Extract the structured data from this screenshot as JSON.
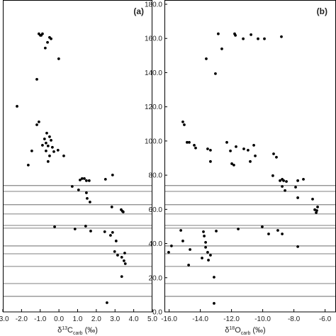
{
  "chart_data": [
    {
      "type": "scatter",
      "panel_label": "(a)",
      "xlabel": {
        "prefix": "δ",
        "sup": "13",
        "element": "C",
        "sub": "carb",
        "unit": "(‰)"
      },
      "color": "#000000",
      "xlim": [
        -3,
        5
      ],
      "xticks": [
        {
          "value": -3,
          "label": "-3.0"
        },
        {
          "value": -2,
          "label": "-2.0"
        },
        {
          "value": -1,
          "label": "-1.0"
        },
        {
          "value": 0,
          "label": "0.0"
        },
        {
          "value": 1,
          "label": "1.0"
        },
        {
          "value": 2,
          "label": "2.0"
        },
        {
          "value": 3,
          "label": "3.0"
        },
        {
          "value": 4,
          "label": "4.0"
        },
        {
          "value": 5,
          "label": "5.0"
        }
      ],
      "ylim": [
        0,
        180
      ],
      "hlines": [
        73.9,
        70.5,
        62.7,
        57.3,
        50.6,
        49.0,
        38.6,
        34.0,
        26.6,
        16.6,
        9.1
      ],
      "x": [
        -1.07,
        -0.95,
        -0.88,
        -0.99,
        -0.5,
        -0.42,
        -0.61,
        -0.73,
        -0.01,
        -1.18,
        -2.24,
        -1.07,
        -1.18,
        -0.65,
        -0.5,
        -0.77,
        -0.42,
        -0.69,
        -0.88,
        -0.58,
        -0.35,
        -0.05,
        -0.69,
        -0.27,
        -0.5,
        -0.58,
        0.26,
        -1.45,
        -1.64,
        1.24,
        1.36,
        1.47,
        1.62,
        1.13,
        2.87,
        2.49,
        0.71,
        1.05,
        1.47,
        1.51,
        1.66,
        2.83,
        3.33,
        3.4,
        3.44,
        -0.23,
        0.86,
        1.43,
        1.7,
        2.45,
        2.76,
        2.87,
        3.06,
        2.98,
        3.14,
        3.36,
        3.52,
        3.48,
        3.55,
        3.36,
        2.57
      ],
      "values": [
        162.7,
        161.8,
        162.7,
        161.8,
        160.6,
        159.8,
        157.7,
        154.4,
        148.1,
        136.1,
        120.3,
        111.2,
        109.5,
        104.6,
        102.5,
        101.2,
        100.4,
        98.8,
        97.5,
        97.1,
        96.3,
        94.6,
        94.2,
        93.8,
        91.3,
        88.0,
        91.3,
        94.2,
        85.9,
        78.0,
        78.0,
        76.8,
        76.8,
        77.2,
        80.1,
        77.6,
        73.4,
        71.4,
        69.7,
        66.4,
        64.3,
        61.4,
        59.8,
        58.9,
        58.5,
        49.8,
        48.5,
        50.2,
        47.3,
        46.9,
        44.8,
        46.5,
        41.5,
        35.3,
        33.2,
        32.0,
        34.4,
        29.9,
        28.2,
        20.7,
        5.4
      ]
    },
    {
      "type": "scatter",
      "panel_label": "(b)",
      "xlabel": {
        "prefix": "δ",
        "sup": "18",
        "element": "O",
        "sub": "carb",
        "unit": "(‰)"
      },
      "color": "#000000",
      "xlim": [
        -16.3,
        -5.3
      ],
      "xticks": [
        {
          "value": -16,
          "label": "-16.0"
        },
        {
          "value": -14,
          "label": "-14.0"
        },
        {
          "value": -12,
          "label": "-12.0"
        },
        {
          "value": -10,
          "label": "-10.0"
        },
        {
          "value": -8,
          "label": "-8.0"
        },
        {
          "value": -6,
          "label": "-6.0"
        }
      ],
      "ylim": [
        0,
        180
      ],
      "yticks": [
        {
          "value": 0,
          "label": "0.0"
        },
        {
          "value": 20,
          "label": "20.0"
        },
        {
          "value": 40,
          "label": "40.0"
        },
        {
          "value": 60,
          "label": "60.0"
        },
        {
          "value": 80,
          "label": "80.0"
        },
        {
          "value": 100,
          "label": "100.0"
        },
        {
          "value": 120,
          "label": "120.0"
        },
        {
          "value": 140,
          "label": "140.0"
        },
        {
          "value": 160,
          "label": "160.0"
        },
        {
          "value": 180,
          "label": "180.0"
        }
      ],
      "hlines": [
        73.9,
        70.5,
        62.7,
        57.3,
        50.6,
        49.0,
        38.6,
        34.0,
        26.6,
        16.6,
        9.1
      ],
      "x": [
        -12.85,
        -11.8,
        -11.75,
        -10.75,
        -10.3,
        -8.8,
        -11.25,
        -9.89,
        -12.62,
        -13.62,
        -13.03,
        -15.12,
        -15.03,
        -14.85,
        -14.71,
        -14.39,
        -13.53,
        -13.35,
        -14.3,
        -13.35,
        -12.3,
        -12.07,
        -11.71,
        -11.21,
        -10.94,
        -10.57,
        -10.48,
        -11.98,
        -10.8,
        -9.3,
        -9.12,
        -11.85,
        -9.35,
        -8.89,
        -8.75,
        -8.66,
        -8.48,
        -8.75,
        -7.75,
        -7.89,
        -7.39,
        -8.57,
        -7.75,
        -6.8,
        -6.48,
        -6.66,
        -6.53,
        -6.57,
        -15.25,
        -13.8,
        -12.98,
        -13.75,
        -15.12,
        -13.66,
        -13.66,
        -14.66,
        -13.89,
        -13.48,
        -13.53,
        -13.35,
        -15.85,
        -16.03,
        -14.75,
        -13.12,
        -13.12,
        -11.57,
        -10.03,
        -8.75,
        -9.62,
        -9.03,
        -7.75
      ],
      "values": [
        162.7,
        162.7,
        161.8,
        162.2,
        159.8,
        161.0,
        159.8,
        159.8,
        153.9,
        148.1,
        139.4,
        111.2,
        109.5,
        99.2,
        99.2,
        97.5,
        95.4,
        94.6,
        95.9,
        88.0,
        99.2,
        94.2,
        96.7,
        95.4,
        94.6,
        97.5,
        91.3,
        86.7,
        88.0,
        92.5,
        90.5,
        85.9,
        79.7,
        76.8,
        77.6,
        76.8,
        76.3,
        73.4,
        76.8,
        73.0,
        77.6,
        71.0,
        66.8,
        66.0,
        61.4,
        59.8,
        59.3,
        58.1,
        47.7,
        46.9,
        47.3,
        44.4,
        41.5,
        40.7,
        37.8,
        36.5,
        31.5,
        30.3,
        34.9,
        33.2,
        38.6,
        34.9,
        27.4,
        20.3,
        5.0,
        48.5,
        49.8,
        45.6,
        45.6,
        47.7,
        38.2
      ]
    }
  ]
}
